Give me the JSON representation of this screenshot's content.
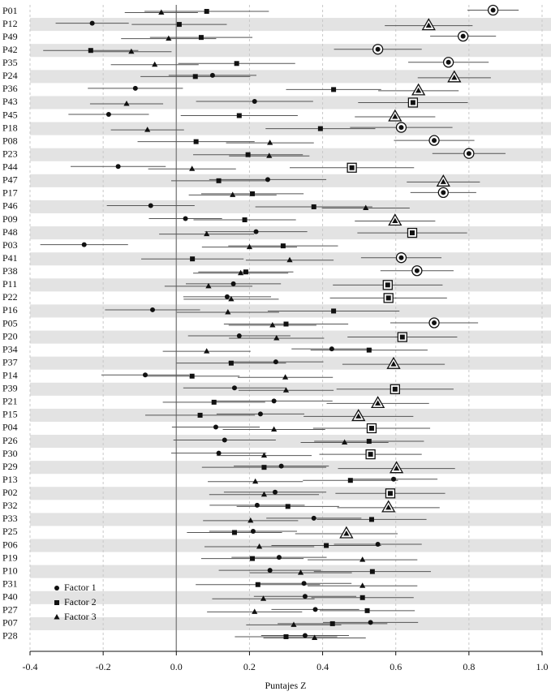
{
  "chart_data": {
    "type": "dot_interval",
    "x_label": "Puntajes Z",
    "categories": [
      "P01",
      "P12",
      "P49",
      "P42",
      "P35",
      "P24",
      "P36",
      "P43",
      "P45",
      "P18",
      "P08",
      "P23",
      "P44",
      "P47",
      "P17",
      "P46",
      "P09",
      "P48",
      "P03",
      "P41",
      "P38",
      "P11",
      "P22",
      "P16",
      "P05",
      "P20",
      "P34",
      "P37",
      "P14",
      "P39",
      "P21",
      "P15",
      "P04",
      "P26",
      "P30",
      "P29",
      "P13",
      "P02",
      "P32",
      "P33",
      "P25",
      "P06",
      "P19",
      "P10",
      "P31",
      "P40",
      "P27",
      "P07",
      "P28"
    ],
    "series": [
      {
        "name": "Factor 1",
        "marker": "circle",
        "color": "#111111",
        "values": [
          0.866,
          -0.23,
          0.784,
          0.551,
          0.744,
          0.099,
          -0.112,
          0.214,
          -0.185,
          0.615,
          0.705,
          0.8,
          -0.159,
          0.25,
          0.73,
          -0.07,
          0.025,
          0.218,
          -0.252,
          0.615,
          0.658,
          0.156,
          0.139,
          -0.065,
          0.705,
          0.172,
          0.425,
          0.272,
          -0.085,
          0.159,
          0.267,
          0.23,
          0.108,
          0.132,
          0.116,
          0.287,
          0.594,
          0.27,
          0.221,
          0.376,
          0.21,
          0.551,
          0.281,
          0.256,
          0.349,
          0.352,
          0.38,
          0.531,
          0.352
        ],
        "errors": [
          0.07,
          0.1,
          0.09,
          0.12,
          0.11,
          0.12,
          0.13,
          0.16,
          0.11,
          0.14,
          0.11,
          0.1,
          0.13,
          0.16,
          0.09,
          0.12,
          0.1,
          0.14,
          0.12,
          0.11,
          0.1,
          0.13,
          0.12,
          0.13,
          0.12,
          0.14,
          0.11,
          0.13,
          0.12,
          0.14,
          0.16,
          0.12,
          0.12,
          0.14,
          0.13,
          0.13,
          0.12,
          0.14,
          0.13,
          0.13,
          0.12,
          0.12,
          0.13,
          0.14,
          0.13,
          0.14,
          0.12,
          0.13,
          0.12
        ]
      },
      {
        "name": "Factor 2",
        "marker": "square",
        "color": "#111111",
        "values": [
          0.083,
          0.008,
          0.068,
          -0.234,
          0.165,
          0.052,
          0.43,
          0.647,
          0.172,
          0.394,
          0.054,
          0.196,
          0.48,
          0.116,
          0.208,
          0.376,
          0.187,
          0.645,
          0.292,
          0.044,
          0.19,
          0.578,
          0.58,
          0.43,
          0.3,
          0.618,
          0.527,
          0.15,
          0.043,
          0.598,
          0.103,
          0.065,
          0.534,
          0.527,
          0.531,
          0.24,
          0.476,
          0.585,
          0.305,
          0.534,
          0.159,
          0.41,
          0.208,
          0.536,
          0.223,
          0.509,
          0.522,
          0.427,
          0.3
        ],
        "errors": [
          0.17,
          0.13,
          0.14,
          0.13,
          0.16,
          0.15,
          0.13,
          0.15,
          0.16,
          0.15,
          0.16,
          0.15,
          0.17,
          0.13,
          0.14,
          0.16,
          0.14,
          0.15,
          0.15,
          0.14,
          0.13,
          0.15,
          0.16,
          0.18,
          0.17,
          0.15,
          0.16,
          0.15,
          0.13,
          0.16,
          0.14,
          0.15,
          0.16,
          0.15,
          0.14,
          0.17,
          0.13,
          0.15,
          0.14,
          0.15,
          0.13,
          0.15,
          0.14,
          0.16,
          0.17,
          0.14,
          0.13,
          0.15,
          0.14
        ]
      },
      {
        "name": "Factor 3",
        "marker": "triangle",
        "color": "#111111",
        "values": [
          -0.041,
          0.69,
          -0.021,
          -0.123,
          -0.059,
          0.76,
          0.662,
          -0.136,
          0.598,
          -0.079,
          0.256,
          0.254,
          0.043,
          0.73,
          0.154,
          0.518,
          0.598,
          0.083,
          0.2,
          0.31,
          0.176,
          0.088,
          0.15,
          0.141,
          0.263,
          0.274,
          0.083,
          0.594,
          0.298,
          0.3,
          0.551,
          0.498,
          0.267,
          0.46,
          0.24,
          0.602,
          0.216,
          0.24,
          0.58,
          0.203,
          0.465,
          0.227,
          0.509,
          0.34,
          0.509,
          0.238,
          0.214,
          0.321,
          0.378
        ],
        "errors": [
          0.1,
          0.12,
          0.13,
          0.11,
          0.12,
          0.1,
          0.11,
          0.1,
          0.11,
          0.1,
          0.12,
          0.11,
          0.12,
          0.1,
          0.12,
          0.12,
          0.11,
          0.13,
          0.13,
          0.12,
          0.13,
          0.12,
          0.13,
          0.14,
          0.12,
          0.13,
          0.12,
          0.14,
          0.13,
          0.13,
          0.14,
          0.15,
          0.14,
          0.12,
          0.13,
          0.16,
          0.13,
          0.15,
          0.14,
          0.13,
          0.14,
          0.15,
          0.15,
          0.14,
          0.15,
          0.14,
          0.13,
          0.13,
          0.14
        ]
      }
    ],
    "significant": [
      "Factor 1",
      "Factor 3",
      "Factor 1",
      "Factor 1",
      "Factor 1",
      "Factor 3",
      "Factor 3",
      "Factor 2",
      "Factor 3",
      "Factor 1",
      "Factor 1",
      "Factor 1",
      "Factor 2",
      "Factor 3",
      "Factor 1",
      null,
      "Factor 3",
      "Factor 2",
      null,
      "Factor 1",
      "Factor 1",
      "Factor 2",
      "Factor 2",
      null,
      "Factor 1",
      "Factor 2",
      null,
      "Factor 3",
      null,
      "Factor 2",
      "Factor 3",
      "Factor 3",
      "Factor 2",
      null,
      "Factor 2",
      "Factor 3",
      null,
      "Factor 2",
      "Factor 3",
      null,
      "Factor 3",
      null,
      null,
      null,
      null,
      null,
      null,
      null,
      null
    ],
    "xlim": [
      -0.4,
      1.0
    ],
    "xticks": [
      -0.4,
      -0.2,
      {
        "value": 0,
        "label": "0.0"
      },
      0.2,
      0.4,
      0.6,
      0.8,
      {
        "value": 1,
        "label": "1.0"
      }
    ],
    "zero_line": true,
    "grid": true,
    "row_bands": true,
    "legend": "lower-left"
  }
}
